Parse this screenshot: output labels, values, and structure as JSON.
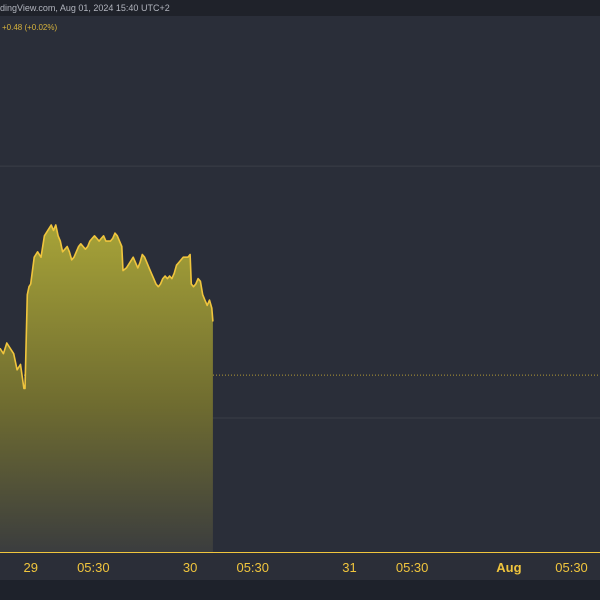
{
  "header": {
    "source_text": "dingView.com, Aug 01, 2024 15:40 UTC+2",
    "change_text": "+0.48 (+0.02%)"
  },
  "colors": {
    "background": "#2a2e39",
    "line": "#f0c53d",
    "area_top": "#9e9a35",
    "area_bottom": "#3b3d3e",
    "grid": "#3a3e48",
    "dotted": "#b39b34",
    "axis_text": "#f0c53d"
  },
  "chart_data": {
    "type": "area",
    "title": "",
    "xlabel": "",
    "ylabel": "",
    "grid": true,
    "legend": "none",
    "x_ticks": [
      {
        "label": "29",
        "x": 10.0,
        "bold": false
      },
      {
        "label": "05:30",
        "x": 15.5,
        "bold": false
      },
      {
        "label": "30",
        "x": 24.0,
        "bold": false
      },
      {
        "label": "05:30",
        "x": 29.5,
        "bold": false
      },
      {
        "label": "31",
        "x": 38.0,
        "bold": false
      },
      {
        "label": "05:30",
        "x": 43.5,
        "bold": false
      },
      {
        "label": "Aug",
        "x": 52.0,
        "bold": true
      },
      {
        "label": "05:30",
        "x": 57.5,
        "bold": false
      }
    ],
    "xlim": [
      7.3,
      60.0
    ],
    "ylim": [
      0,
      100
    ],
    "reference_lines": [
      {
        "style": "solid",
        "y": 72
      },
      {
        "style": "dotted",
        "y": 33
      },
      {
        "style": "solid",
        "y": 25
      }
    ],
    "series": [
      {
        "values": [
          [
            7.3,
            38
          ],
          [
            7.6,
            37
          ],
          [
            7.9,
            39
          ],
          [
            8.2,
            38
          ],
          [
            8.5,
            37
          ],
          [
            8.8,
            34
          ],
          [
            9.1,
            35
          ],
          [
            9.4,
            30.5
          ],
          [
            9.5,
            30.5
          ],
          [
            9.7,
            48
          ],
          [
            9.85,
            49.5
          ],
          [
            10.0,
            50
          ],
          [
            10.3,
            55
          ],
          [
            10.6,
            56
          ],
          [
            10.9,
            55
          ],
          [
            11.2,
            59
          ],
          [
            11.5,
            60
          ],
          [
            11.8,
            61
          ],
          [
            12.0,
            60
          ],
          [
            12.2,
            61
          ],
          [
            12.4,
            59
          ],
          [
            12.6,
            58
          ],
          [
            12.8,
            56
          ],
          [
            13.0,
            56.5
          ],
          [
            13.2,
            57
          ],
          [
            13.4,
            56
          ],
          [
            13.6,
            54.5
          ],
          [
            13.8,
            55
          ],
          [
            14.0,
            56
          ],
          [
            14.2,
            57
          ],
          [
            14.4,
            57.5
          ],
          [
            14.6,
            57
          ],
          [
            14.8,
            56.5
          ],
          [
            15.0,
            57
          ],
          [
            15.2,
            58
          ],
          [
            15.4,
            58.5
          ],
          [
            15.6,
            59
          ],
          [
            15.8,
            58.5
          ],
          [
            16.0,
            58
          ],
          [
            16.2,
            58.5
          ],
          [
            16.4,
            59
          ],
          [
            16.6,
            58
          ],
          [
            16.8,
            58
          ],
          [
            17.0,
            58
          ],
          [
            17.2,
            58.5
          ],
          [
            17.4,
            59.5
          ],
          [
            17.6,
            59
          ],
          [
            17.8,
            58
          ],
          [
            18.0,
            57
          ],
          [
            18.1,
            52.5
          ],
          [
            18.4,
            53
          ],
          [
            18.7,
            54
          ],
          [
            19.0,
            55
          ],
          [
            19.2,
            54
          ],
          [
            19.4,
            53
          ],
          [
            19.6,
            54
          ],
          [
            19.8,
            55.5
          ],
          [
            20.0,
            55
          ],
          [
            20.2,
            54
          ],
          [
            20.4,
            53
          ],
          [
            20.6,
            52
          ],
          [
            20.8,
            51
          ],
          [
            21.0,
            50
          ],
          [
            21.2,
            49.5
          ],
          [
            21.4,
            50
          ],
          [
            21.6,
            51
          ],
          [
            21.8,
            51.5
          ],
          [
            22.0,
            51
          ],
          [
            22.2,
            51.5
          ],
          [
            22.4,
            51
          ],
          [
            22.6,
            52
          ],
          [
            22.8,
            53.5
          ],
          [
            23.0,
            54
          ],
          [
            23.2,
            54.5
          ],
          [
            23.4,
            55
          ],
          [
            23.6,
            55
          ],
          [
            23.8,
            55
          ],
          [
            24.0,
            55.5
          ],
          [
            24.1,
            50
          ],
          [
            24.3,
            49.5
          ],
          [
            24.5,
            50
          ],
          [
            24.7,
            51
          ],
          [
            24.9,
            50.5
          ],
          [
            25.1,
            48
          ],
          [
            25.3,
            47
          ],
          [
            25.5,
            46
          ],
          [
            25.7,
            47
          ],
          [
            25.9,
            45.5
          ],
          [
            26.0,
            43
          ]
        ]
      }
    ]
  }
}
